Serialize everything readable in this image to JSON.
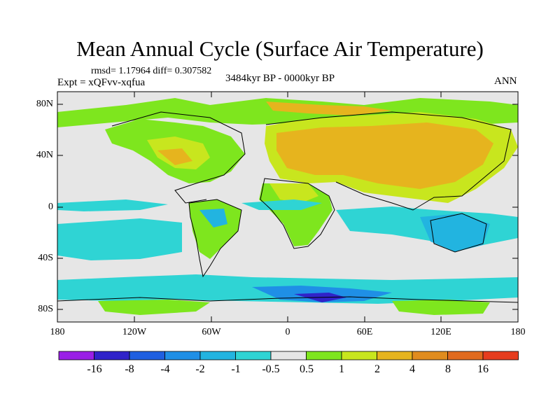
{
  "title": "Mean Annual Cycle (Surface Air Temperature)",
  "stats_line": "rmsd= 1.17964 diff= 0.307582",
  "experiment_line": "Expt = xQFvv-xqfua",
  "period_line": "3484kyr BP - 0000kyr BP",
  "season": "ANN",
  "axes": {
    "y_ticks": [
      "80N",
      "40N",
      "0",
      "40S",
      "80S"
    ],
    "x_ticks": [
      "180",
      "120W",
      "60W",
      "0",
      "60E",
      "120E",
      "180"
    ]
  },
  "colorbar": {
    "labels": [
      "-16",
      "-8",
      "-4",
      "-2",
      "-1",
      "-0.5",
      "0.5",
      "1",
      "2",
      "4",
      "8",
      "16"
    ],
    "colors": [
      "#9a1fe6",
      "#3023c9",
      "#1f5fe0",
      "#1f8fe6",
      "#22b4e0",
      "#2fd4d4",
      "#e6e6e6",
      "#7ee61e",
      "#c8e61e",
      "#e6b41e",
      "#e08c1e",
      "#e06a1e",
      "#e63c1e"
    ]
  },
  "colors": {
    "land_outline": "#000000",
    "background": "#e6e6e6"
  }
}
